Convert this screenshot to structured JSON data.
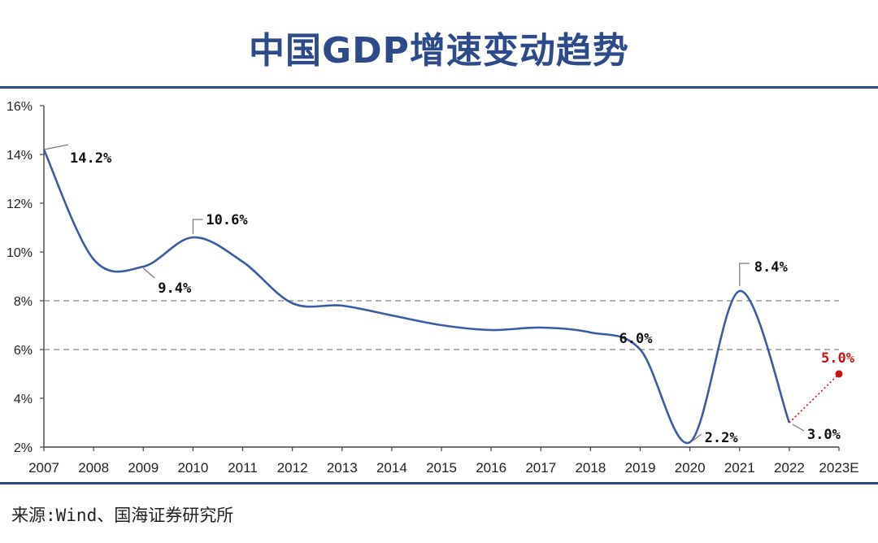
{
  "chart_data": {
    "type": "line",
    "title": "中国GDP增速变动趋势",
    "source": "来源:Wind、国海证券研究所",
    "categories": [
      "2007",
      "2008",
      "2009",
      "2010",
      "2011",
      "2012",
      "2013",
      "2014",
      "2015",
      "2016",
      "2017",
      "2018",
      "2019",
      "2020",
      "2021",
      "2022",
      "2023E"
    ],
    "y_ticks": [
      "2%",
      "4%",
      "6%",
      "8%",
      "10%",
      "12%",
      "14%",
      "16%"
    ],
    "ylim": [
      2,
      16
    ],
    "reference_lines": [
      6,
      8
    ],
    "series": [
      {
        "values": [
          14.2,
          9.7,
          9.4,
          10.6,
          9.6,
          7.9,
          7.8,
          7.4,
          7.0,
          6.8,
          6.9,
          6.7,
          6.0,
          2.2,
          8.4,
          3.0,
          null
        ],
        "color": "#3b5ba5"
      },
      {
        "values": [
          null,
          null,
          null,
          null,
          null,
          null,
          null,
          null,
          null,
          null,
          null,
          null,
          null,
          null,
          null,
          3.0,
          5.0
        ],
        "color": "#cc1111",
        "style": "dotted"
      }
    ],
    "annotations": [
      {
        "text": "14.2%",
        "index": 0,
        "value": 14.2
      },
      {
        "text": "9.4%",
        "index": 2,
        "value": 9.4
      },
      {
        "text": "10.6%",
        "index": 3,
        "value": 10.6
      },
      {
        "text": "6.0%",
        "index": 12,
        "value": 6.0
      },
      {
        "text": "2.2%",
        "index": 13,
        "value": 2.2
      },
      {
        "text": "8.4%",
        "index": 14,
        "value": 8.4
      },
      {
        "text": "3.0%",
        "index": 15,
        "value": 3.0
      },
      {
        "text": "5.0%",
        "index": 16,
        "value": 5.0,
        "color": "#cc1111"
      }
    ]
  }
}
